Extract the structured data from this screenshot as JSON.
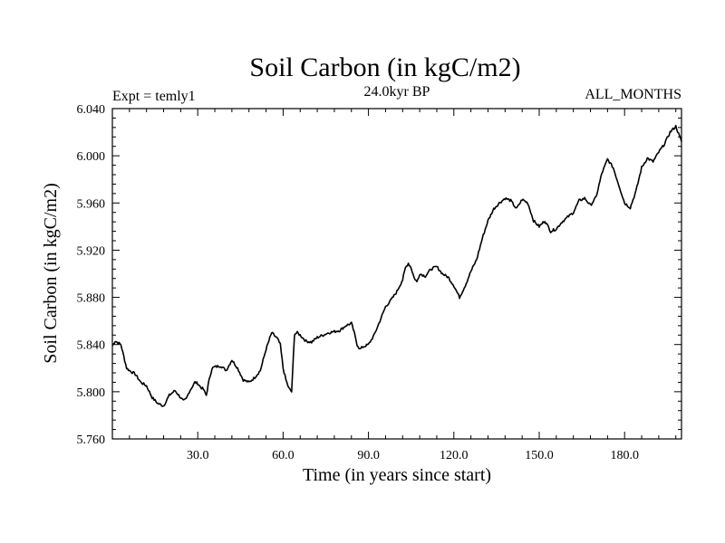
{
  "chart_data": {
    "type": "line",
    "title": "Soil Carbon (in kgC/m2)",
    "subtitle_left": "Expt = temly1",
    "subtitle_center": "24.0kyr BP",
    "subtitle_right": "ALL_MONTHS",
    "xlabel": "Time (in years since start)",
    "ylabel": "Soil Carbon (in kgC/m2)",
    "xlim": [
      0,
      200
    ],
    "ylim": [
      5.76,
      6.04
    ],
    "xticks": [
      {
        "value": 30,
        "label": "30.0"
      },
      {
        "value": 60,
        "label": "60.0"
      },
      {
        "value": 90,
        "label": "90.0"
      },
      {
        "value": 120,
        "label": "120.0"
      },
      {
        "value": 150,
        "label": "150.0"
      },
      {
        "value": 180,
        "label": "180.0"
      }
    ],
    "yticks": [
      {
        "value": 5.76,
        "label": "5.760"
      },
      {
        "value": 5.8,
        "label": "5.800"
      },
      {
        "value": 5.84,
        "label": "5.840"
      },
      {
        "value": 5.88,
        "label": "5.880"
      },
      {
        "value": 5.92,
        "label": "5.920"
      },
      {
        "value": 5.96,
        "label": "5.960"
      },
      {
        "value": 6.0,
        "label": "6.000"
      },
      {
        "value": 6.04,
        "label": "6.040"
      }
    ],
    "series": [
      {
        "name": "Soil Carbon",
        "x": [
          0,
          1,
          3,
          4,
          5,
          6,
          8,
          10,
          12,
          14,
          16,
          18,
          20,
          22,
          24,
          25,
          26,
          27,
          28,
          29,
          30,
          31,
          32,
          33,
          34,
          35,
          36,
          38,
          40,
          42,
          44,
          46,
          48,
          50,
          52,
          54,
          56,
          58,
          59,
          60,
          61,
          62,
          63,
          64,
          65,
          66,
          68,
          70,
          72,
          74,
          76,
          78,
          80,
          82,
          84,
          85,
          86,
          87,
          88,
          90,
          92,
          94,
          96,
          98,
          100,
          102,
          103,
          104,
          105,
          106,
          107,
          108,
          110,
          112,
          114,
          116,
          118,
          120,
          122,
          124,
          126,
          128,
          130,
          132,
          134,
          136,
          138,
          140,
          142,
          144,
          146,
          148,
          150,
          152,
          154,
          156,
          158,
          160,
          162,
          164,
          166,
          168,
          170,
          172,
          174,
          176,
          178,
          180,
          182,
          184,
          186,
          188,
          190,
          192,
          194,
          196,
          198,
          200
        ],
        "values": [
          5.839,
          5.843,
          5.84,
          5.83,
          5.82,
          5.818,
          5.815,
          5.808,
          5.805,
          5.795,
          5.79,
          5.788,
          5.797,
          5.801,
          5.795,
          5.792,
          5.794,
          5.8,
          5.804,
          5.808,
          5.807,
          5.804,
          5.802,
          5.797,
          5.81,
          5.82,
          5.821,
          5.822,
          5.818,
          5.827,
          5.82,
          5.81,
          5.808,
          5.812,
          5.818,
          5.836,
          5.85,
          5.845,
          5.84,
          5.82,
          5.81,
          5.803,
          5.8,
          5.849,
          5.85,
          5.848,
          5.843,
          5.842,
          5.846,
          5.848,
          5.85,
          5.851,
          5.852,
          5.856,
          5.858,
          5.85,
          5.84,
          5.836,
          5.838,
          5.84,
          5.848,
          5.86,
          5.872,
          5.878,
          5.885,
          5.895,
          5.905,
          5.909,
          5.905,
          5.897,
          5.893,
          5.9,
          5.898,
          5.904,
          5.906,
          5.9,
          5.897,
          5.89,
          5.88,
          5.89,
          5.902,
          5.912,
          5.93,
          5.945,
          5.955,
          5.96,
          5.964,
          5.962,
          5.955,
          5.963,
          5.96,
          5.945,
          5.94,
          5.945,
          5.936,
          5.938,
          5.944,
          5.948,
          5.952,
          5.962,
          5.964,
          5.958,
          5.965,
          5.985,
          5.997,
          5.99,
          5.975,
          5.96,
          5.956,
          5.97,
          5.99,
          5.998,
          5.995,
          6.003,
          6.01,
          6.02,
          6.025,
          6.012
        ]
      }
    ],
    "line_color": "#000000",
    "grid": false
  }
}
